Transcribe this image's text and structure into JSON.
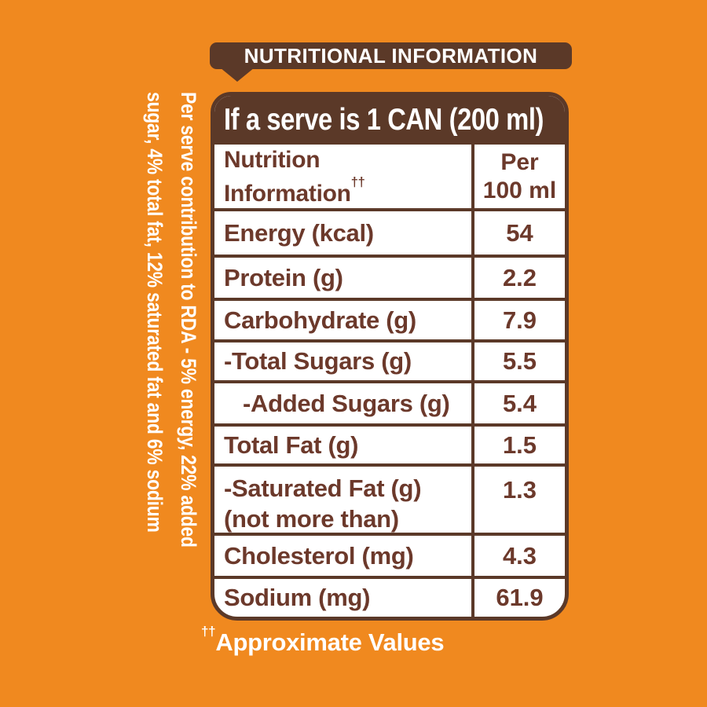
{
  "colors": {
    "background_orange": "#F0891F",
    "panel_brown": "#5B3928",
    "table_text_brown": "#6C392B",
    "text_white": "#FFFFFF"
  },
  "badge": {
    "title": "NUTRITIONAL INFORMATION"
  },
  "rda_note": {
    "line1": "Per serve contribution to RDA - 5% energy, 22% added",
    "line2": "sugar, 4% total fat, 12% saturated fat and 6% sodium"
  },
  "table": {
    "serving_title": "If a serve is 1 CAN (200 ml)",
    "columns": {
      "label_line1": "Nutrition",
      "label_line2": "Information",
      "dagger": "††",
      "value_line1": "Per",
      "value_line2": "100 ml"
    },
    "rows": [
      {
        "label": "Energy (kcal)",
        "value": "54"
      },
      {
        "label": "Protein (g)",
        "value": "2.2"
      },
      {
        "label": "Carbohydrate (g)",
        "value": "7.9"
      },
      {
        "label": "-Total Sugars (g)",
        "value": "5.5"
      },
      {
        "label": "-Added Sugars (g)",
        "value": "5.4"
      },
      {
        "label": "Total Fat (g)",
        "value": "1.5"
      },
      {
        "label": "-Saturated Fat (g)",
        "sublabel": "(not more than)",
        "value": "1.3"
      },
      {
        "label": "Cholesterol (mg)",
        "value": "4.3"
      },
      {
        "label": "Sodium (mg)",
        "value": "61.9"
      }
    ]
  },
  "footnote": {
    "dagger": "††",
    "text": "Approximate Values"
  }
}
